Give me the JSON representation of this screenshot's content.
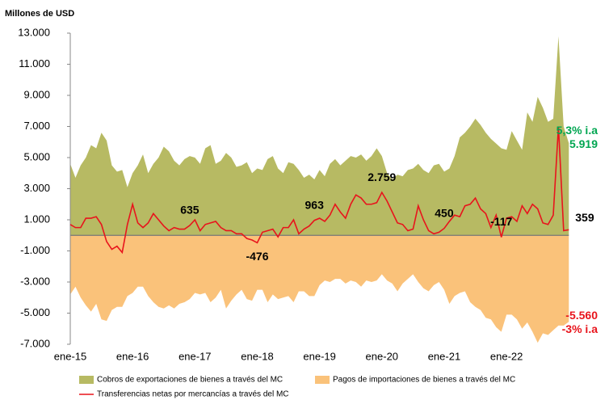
{
  "chart_data": {
    "type": "area",
    "y_label": "Millones de USD",
    "categories": [
      "ene-15",
      null,
      null,
      null,
      null,
      null,
      null,
      null,
      null,
      null,
      null,
      null,
      "ene-16",
      null,
      null,
      null,
      null,
      null,
      null,
      null,
      null,
      null,
      null,
      null,
      "ene-17",
      null,
      null,
      null,
      null,
      null,
      null,
      null,
      null,
      null,
      null,
      null,
      "ene-18",
      null,
      null,
      null,
      null,
      null,
      null,
      null,
      null,
      null,
      null,
      null,
      "ene-19",
      null,
      null,
      null,
      null,
      null,
      null,
      null,
      null,
      null,
      null,
      null,
      "ene-20",
      null,
      null,
      null,
      null,
      null,
      null,
      null,
      null,
      null,
      null,
      null,
      "ene-21",
      null,
      null,
      null,
      null,
      null,
      null,
      null,
      null,
      null,
      null,
      null,
      "ene-22",
      null,
      null,
      null,
      null,
      null,
      null,
      null,
      null,
      null,
      null,
      null,
      null
    ],
    "ylim": [
      -7000,
      13000
    ],
    "yticks": [
      {
        "value": 13000,
        "label": "13.000"
      },
      {
        "value": 11000,
        "label": "11.000"
      },
      {
        "value": 9000,
        "label": "9.000"
      },
      {
        "value": 7000,
        "label": "7.000"
      },
      {
        "value": 5000,
        "label": "5.000"
      },
      {
        "value": 3000,
        "label": "3.000"
      },
      {
        "value": 1000,
        "label": "1.000"
      },
      {
        "value": -1000,
        "label": "-1.000"
      },
      {
        "value": -3000,
        "label": "-3.000"
      },
      {
        "value": -5000,
        "label": "-5.000"
      },
      {
        "value": -7000,
        "label": "-7.000"
      }
    ],
    "series": [
      {
        "name": "Cobros de exportaciones de bienes a través del MC",
        "kind": "area",
        "color": "#b7ba63",
        "label_color": "#00a651",
        "values": [
          4600,
          3700,
          4500,
          5000,
          5800,
          5600,
          6600,
          6100,
          4500,
          4100,
          4200,
          3100,
          4000,
          4500,
          5200,
          4000,
          4600,
          5000,
          5700,
          5400,
          4800,
          4500,
          4900,
          5100,
          5000,
          4600,
          5600,
          5800,
          4600,
          4800,
          5300,
          5000,
          4400,
          4500,
          4700,
          4000,
          4300,
          4200,
          4900,
          5100,
          4300,
          4000,
          4700,
          4600,
          4200,
          3700,
          3900,
          3600,
          4200,
          3800,
          4600,
          4900,
          4500,
          4800,
          5100,
          5000,
          5200,
          4800,
          5100,
          5600,
          5100,
          4000,
          3600,
          3900,
          3800,
          4200,
          4300,
          4600,
          4200,
          4000,
          4500,
          4600,
          4100,
          4300,
          5100,
          6300,
          6600,
          7000,
          7500,
          7100,
          6600,
          6200,
          5900,
          5600,
          5500,
          6700,
          6100,
          5500,
          7900,
          7300,
          8900,
          8200,
          7300,
          7500,
          12800,
          7000,
          5919
        ],
        "value_labels": [
          null,
          null,
          null,
          null,
          null,
          null,
          null,
          null,
          null,
          null,
          null,
          null,
          null,
          null,
          null,
          null,
          null,
          null,
          null,
          null,
          null,
          null,
          null,
          null,
          null,
          null,
          null,
          null,
          null,
          null,
          null,
          null,
          null,
          null,
          null,
          null,
          null,
          null,
          null,
          null,
          null,
          null,
          null,
          null,
          null,
          null,
          null,
          null,
          null,
          null,
          null,
          null,
          null,
          null,
          null,
          null,
          null,
          null,
          null,
          null,
          null,
          null,
          null,
          null,
          null,
          null,
          null,
          null,
          null,
          null,
          null,
          null,
          null,
          null,
          null,
          null,
          null,
          null,
          null,
          null,
          null,
          null,
          null,
          null,
          null,
          null,
          null,
          null,
          null,
          null,
          null,
          null,
          null,
          null,
          null,
          null,
          "5.919"
        ]
      },
      {
        "name": "Pagos de importaciones de bienes a través del MC",
        "kind": "area",
        "color": "#fac27a",
        "label_color": "#e8141c",
        "values": [
          -3800,
          -3300,
          -4000,
          -4500,
          -4900,
          -4400,
          -5400,
          -5500,
          -4800,
          -4600,
          -4600,
          -3900,
          -3700,
          -3300,
          -3300,
          -3900,
          -4300,
          -4600,
          -4700,
          -4500,
          -4700,
          -4400,
          -4300,
          -4100,
          -3700,
          -3800,
          -3700,
          -4300,
          -4000,
          -3500,
          -4700,
          -4200,
          -3800,
          -3500,
          -4100,
          -4200,
          -3500,
          -3500,
          -4300,
          -3800,
          -4100,
          -4000,
          -3900,
          -4300,
          -3600,
          -3600,
          -3900,
          -3900,
          -3200,
          -2900,
          -3000,
          -2800,
          -2800,
          -3100,
          -2900,
          -3000,
          -3300,
          -2900,
          -3000,
          -2900,
          -2500,
          -2900,
          -3100,
          -3600,
          -3100,
          -2800,
          -2500,
          -3000,
          -3400,
          -3600,
          -3200,
          -3000,
          -3500,
          -4400,
          -3900,
          -3700,
          -3600,
          -4300,
          -4600,
          -4800,
          -5300,
          -5400,
          -5900,
          -6200,
          -5100,
          -5100,
          -5400,
          -6000,
          -5600,
          -6200,
          -6900,
          -6300,
          -6400,
          -6100,
          -5800,
          -5800,
          -5560
        ],
        "value_labels": [
          null,
          null,
          null,
          null,
          null,
          null,
          null,
          null,
          null,
          null,
          null,
          null,
          null,
          null,
          null,
          null,
          null,
          null,
          null,
          null,
          null,
          null,
          null,
          null,
          null,
          null,
          null,
          null,
          null,
          null,
          null,
          null,
          null,
          null,
          null,
          null,
          null,
          null,
          null,
          null,
          null,
          null,
          null,
          null,
          null,
          null,
          null,
          null,
          null,
          null,
          null,
          null,
          null,
          null,
          null,
          null,
          null,
          null,
          null,
          null,
          null,
          null,
          null,
          null,
          null,
          null,
          null,
          null,
          null,
          null,
          null,
          null,
          null,
          null,
          null,
          null,
          null,
          null,
          null,
          null,
          null,
          null,
          null,
          null,
          null,
          null,
          null,
          null,
          null,
          null,
          null,
          null,
          null,
          null,
          null,
          null,
          "-5.560"
        ]
      },
      {
        "name": "Transferencias netas por mercancías a través del MC",
        "kind": "line",
        "color": "#e8141c",
        "label_color": "#000000",
        "values": [
          700,
          500,
          500,
          1100,
          1100,
          1200,
          700,
          -400,
          -900,
          -700,
          -1100,
          700,
          2000,
          800,
          500,
          800,
          1400,
          1000,
          600,
          300,
          500,
          400,
          400,
          635,
          1000,
          300,
          700,
          800,
          900,
          500,
          300,
          300,
          100,
          100,
          -200,
          -300,
          -476,
          200,
          300,
          400,
          -100,
          500,
          500,
          1000,
          100,
          400,
          600,
          963,
          1100,
          900,
          1300,
          2000,
          1500,
          1100,
          2000,
          2600,
          2400,
          2000,
          2000,
          2100,
          2759,
          2200,
          1500,
          800,
          700,
          300,
          400,
          1900,
          1000,
          300,
          100,
          200,
          450,
          900,
          1300,
          1200,
          1900,
          2000,
          2400,
          1700,
          1400,
          500,
          1300,
          -117,
          1100,
          1200,
          900,
          1900,
          1400,
          2000,
          1700,
          800,
          700,
          1300,
          7000,
          300,
          359
        ],
        "value_labels": [
          null,
          null,
          null,
          null,
          null,
          null,
          null,
          null,
          null,
          null,
          null,
          null,
          null,
          null,
          null,
          null,
          null,
          null,
          null,
          null,
          null,
          null,
          null,
          "635",
          null,
          null,
          null,
          null,
          null,
          null,
          null,
          null,
          null,
          null,
          null,
          null,
          "-476",
          null,
          null,
          null,
          null,
          null,
          null,
          null,
          null,
          null,
          null,
          "963",
          null,
          null,
          null,
          null,
          null,
          null,
          null,
          null,
          null,
          null,
          null,
          null,
          "2.759",
          null,
          null,
          null,
          null,
          null,
          null,
          null,
          null,
          null,
          null,
          null,
          "450",
          null,
          null,
          null,
          null,
          null,
          null,
          null,
          null,
          null,
          null,
          "-117",
          null,
          null,
          null,
          null,
          null,
          null,
          null,
          null,
          null,
          null,
          null,
          null,
          "359"
        ]
      }
    ],
    "annotations": [
      {
        "text": "5,3% i.a",
        "color": "#00a651"
      },
      {
        "text": "-3% i.a",
        "color": "#e8141c"
      }
    ]
  }
}
